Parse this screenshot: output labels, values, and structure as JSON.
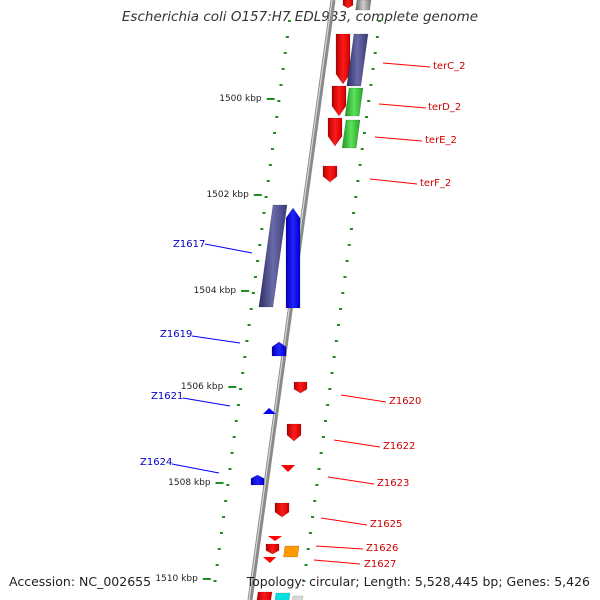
{
  "title": "Escherichia coli O157:H7 EDL933, complete genome",
  "footer": {
    "accession": "Accession: NC_002655",
    "topology": "Topology: circular; Length: 5,528,445 bp; Genes: 5,426"
  },
  "colors": {
    "forward": "#ff0000",
    "reverse": "#0000ff",
    "slate": "#4b4b8c",
    "green": "#33cc33",
    "orange": "#ff9900",
    "cyan": "#00e0e0",
    "tick": "#228b22",
    "backbone": "#8c8c8c"
  },
  "scale_labels": [
    "1500 kbp",
    "1502 kbp",
    "1504 kbp",
    "1506 kbp",
    "1508 kbp",
    "1510 kbp"
  ],
  "genes_left": [
    "Z1617",
    "Z1619",
    "Z1621",
    "Z1624"
  ],
  "genes_right": [
    "terC_2",
    "terD_2",
    "terE_2",
    "terF_2",
    "Z1620",
    "Z1622",
    "Z1623",
    "Z1625",
    "Z1626",
    "Z1627"
  ]
}
